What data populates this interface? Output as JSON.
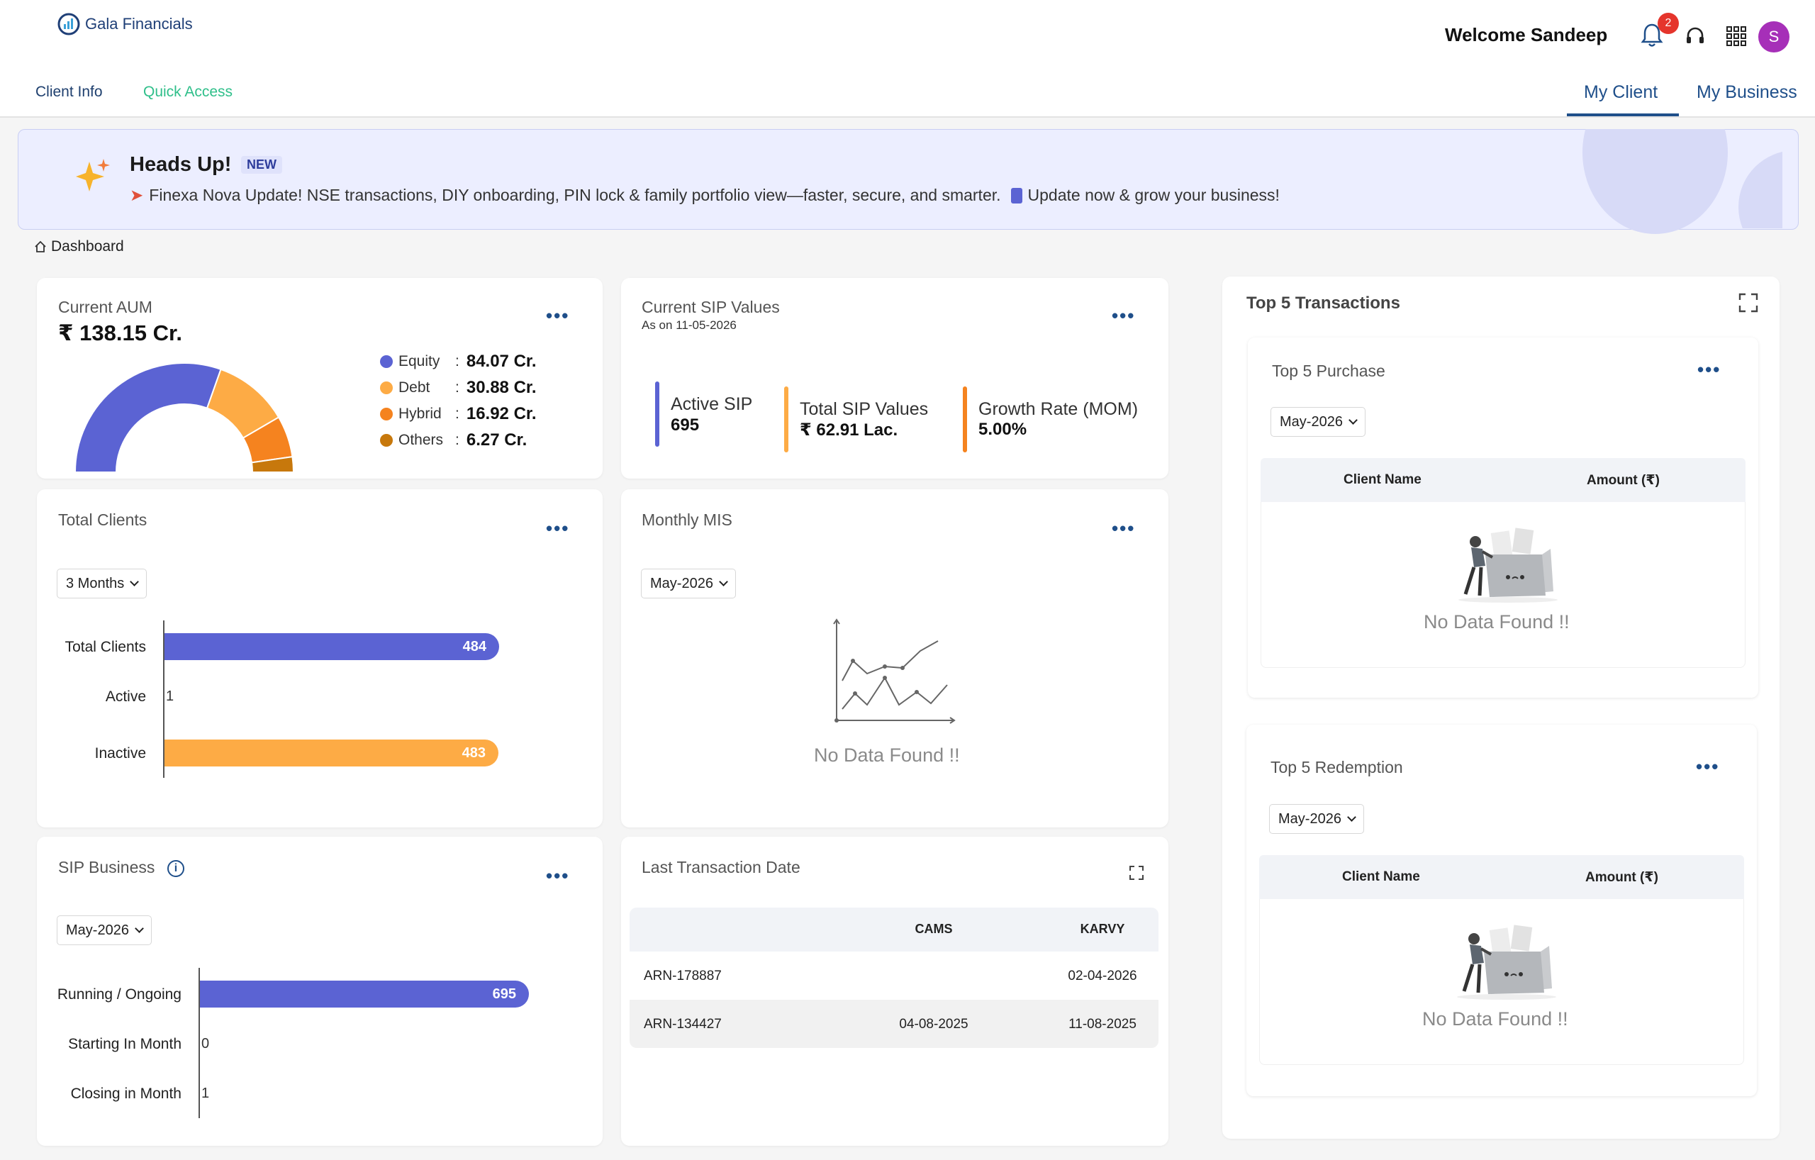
{
  "header": {
    "brand": "Gala Financials",
    "welcome": "Welcome Sandeep",
    "notification_count": "2",
    "avatar_initial": "S",
    "subnav": [
      "Client Info",
      "Quick Access"
    ],
    "tabs": [
      "My Client",
      "My Business"
    ]
  },
  "banner": {
    "title": "Heads Up!",
    "badge": "NEW",
    "message": "Finexa Nova Update! NSE transactions, DIY onboarding, PIN lock & family portfolio view—faster, secure, and smarter.",
    "message_cta": "Update now & grow your business!"
  },
  "breadcrumb": "Dashboard",
  "aum": {
    "title": "Current AUM",
    "value": "₹ 138.15 Cr.",
    "legend": [
      {
        "label": "Equity",
        "sep": ":",
        "value": "84.07 Cr.",
        "color": "#5b63d3",
        "amount": 84.07
      },
      {
        "label": "Debt",
        "sep": ":",
        "value": "30.88 Cr.",
        "color": "#fdab45",
        "amount": 30.88
      },
      {
        "label": "Hybrid",
        "sep": ":",
        "value": "16.92 Cr.",
        "color": "#f5831f",
        "amount": 16.92
      },
      {
        "label": "Others",
        "sep": ":",
        "value": "6.27 Cr.",
        "color": "#c7780c",
        "amount": 6.27
      }
    ]
  },
  "sip_values": {
    "title": "Current SIP Values",
    "subtitle": "As on 11-05-2026",
    "items": [
      {
        "label": "Active SIP",
        "value": "695",
        "color": "#5b63d3"
      },
      {
        "label": "Total SIP Values",
        "value": "₹ 62.91 Lac.",
        "color": "#fdab45"
      },
      {
        "label": "Growth Rate (MOM)",
        "value": "5.00%",
        "color": "#f5831f"
      }
    ]
  },
  "total_clients": {
    "title": "Total Clients",
    "filter": "3 Months",
    "chart_data": {
      "type": "bar",
      "categories": [
        "Total Clients",
        "Active",
        "Inactive"
      ],
      "values": [
        484,
        1,
        483
      ],
      "labels": [
        "484",
        "1",
        "483"
      ],
      "colors": [
        "#5b63d3",
        "#5b63d3",
        "#fdab45"
      ],
      "xlim": [
        0,
        484
      ]
    }
  },
  "monthly_mis": {
    "title": "Monthly MIS",
    "filter": "May-2026",
    "empty": "No Data Found !!"
  },
  "sip_business": {
    "title": "SIP Business",
    "filter": "May-2026",
    "chart_data": {
      "type": "bar",
      "categories": [
        "Running / Ongoing",
        "Starting In Month",
        "Closing in Month"
      ],
      "values": [
        695,
        0,
        1
      ],
      "labels": [
        "695",
        "0",
        "1"
      ],
      "colors": [
        "#5b63d3",
        "#5b63d3",
        "#5b63d3"
      ],
      "xlim": [
        0,
        695
      ]
    }
  },
  "last_transaction": {
    "title": "Last Transaction Date",
    "columns": [
      "",
      "CAMS",
      "KARVY"
    ],
    "rows": [
      {
        "arn": "ARN-178887",
        "cams": "",
        "karvy": "02-04-2026"
      },
      {
        "arn": "ARN-134427",
        "cams": "04-08-2025",
        "karvy": "11-08-2025"
      }
    ]
  },
  "top5": {
    "title": "Top 5 Transactions",
    "purchase": {
      "title": "Top 5 Purchase",
      "filter": "May-2026",
      "columns": [
        "Client Name",
        "Amount (₹)"
      ],
      "empty": "No Data Found !!"
    },
    "redemption": {
      "title": "Top 5 Redemption",
      "filter": "May-2026",
      "columns": [
        "Client Name",
        "Amount (₹)"
      ],
      "empty": "No Data Found !!"
    }
  }
}
